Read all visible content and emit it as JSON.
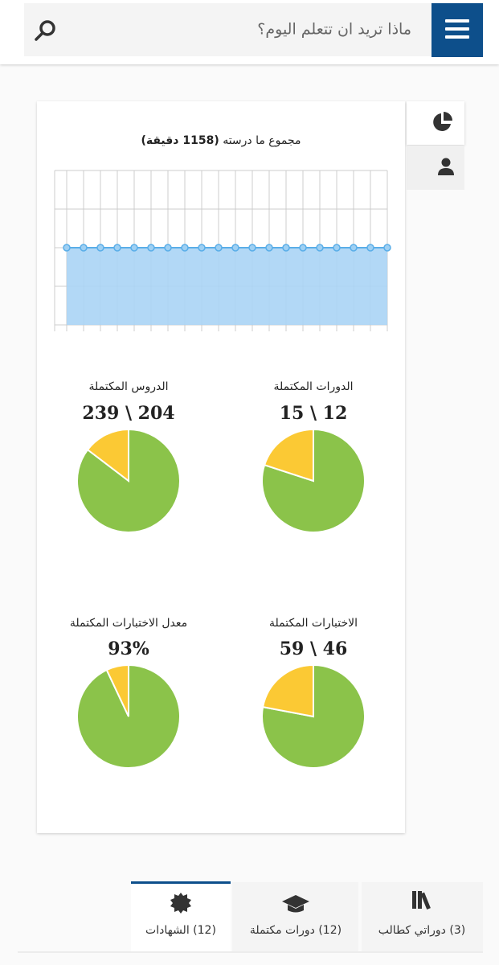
{
  "header": {
    "search_placeholder": "ماذا تريد ان تتعلم اليوم؟"
  },
  "chart_data": [
    {
      "type": "area",
      "title": "مجموع ما درسته",
      "title_total": "(1158 دقيقة)",
      "values": [
        2,
        2,
        2,
        2,
        2,
        2,
        2,
        2,
        2,
        2,
        2,
        2,
        2,
        2,
        2,
        2,
        2,
        2,
        2,
        2
      ],
      "ylim": [
        0,
        4
      ],
      "yticks": [
        0,
        1,
        2,
        3,
        4
      ],
      "grid": true,
      "color": "#5aaee8"
    },
    {
      "type": "pie",
      "title": "الدورات المكتملة",
      "values": [
        12
      ],
      "total": 15,
      "value_labels": [
        "15 \\ 12"
      ],
      "colors": [
        "#8bc34a",
        "#fbc934"
      ]
    },
    {
      "type": "pie",
      "title": "الدروس المكتملة",
      "values": [
        204
      ],
      "total": 239,
      "value_labels": [
        "239 \\ 204"
      ],
      "colors": [
        "#8bc34a",
        "#fbc934"
      ]
    },
    {
      "type": "pie",
      "title": "الاختبارات المكتملة",
      "values": [
        46
      ],
      "total": 59,
      "value_labels": [
        "59 \\ 46"
      ],
      "colors": [
        "#8bc34a",
        "#fbc934"
      ]
    },
    {
      "type": "pie",
      "title": "معدل الاختبارات المكتملة",
      "values": [
        93
      ],
      "percent": true,
      "value_labels": [
        "93%"
      ],
      "colors": [
        "#8bc34a",
        "#fbc934"
      ]
    }
  ],
  "tabs": [
    "(3) دوراتي كطالب",
    "(12) دورات مكتملة",
    "(12) الشهادات"
  ]
}
